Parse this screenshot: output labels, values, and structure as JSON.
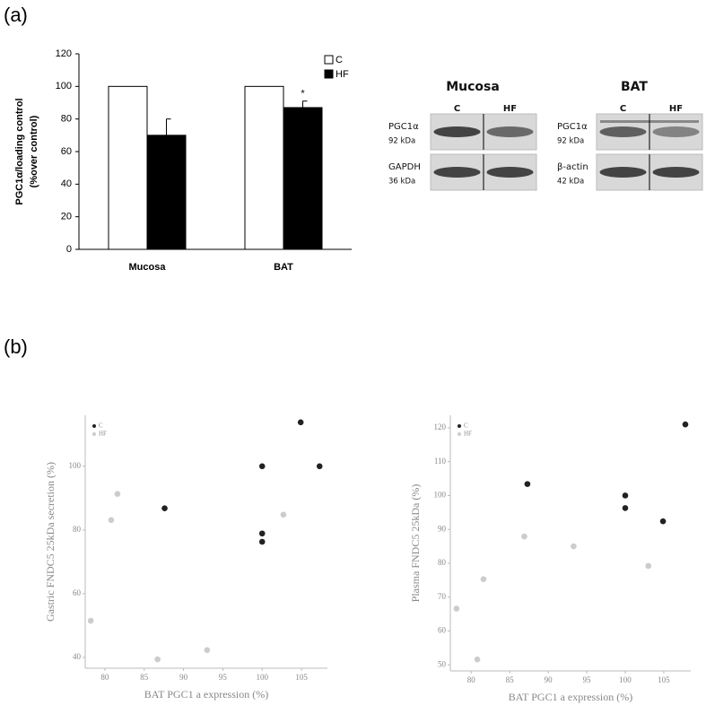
{
  "panel_labels": [
    "(a)",
    "(b)"
  ],
  "chart_data": [
    {
      "type": "bar",
      "ylabel": [
        "PGC1α/loading control",
        "(%over  control)"
      ],
      "categories": [
        "Mucosa",
        "BAT"
      ],
      "series": [
        {
          "name": "C",
          "color": "#ffffff",
          "values": [
            100,
            100
          ]
        },
        {
          "name": "HF",
          "color": "#000000",
          "values": [
            70,
            87
          ],
          "errors": [
            10,
            4
          ]
        }
      ],
      "annotation": "*",
      "ylim": [
        0,
        120
      ],
      "yticks": [
        0,
        20,
        40,
        60,
        80,
        100,
        120
      ]
    },
    {
      "type": "scatter",
      "xlabel": "BAT PGC1 a  expression (%)",
      "ylabel": "Gastric FNDC5 25kDa secretion (%)",
      "series": [
        {
          "name": "C",
          "color": "#222222",
          "x": [
            87.6,
            100,
            100,
            100,
            104.9,
            107.3
          ],
          "values": [
            86.8,
            100,
            78.9,
            76.3,
            113.8,
            100
          ]
        },
        {
          "name": "HF",
          "color": "#cccccc",
          "x": [
            78.2,
            80.8,
            81.6,
            86.7,
            93.0,
            102.7
          ],
          "values": [
            51.5,
            83.1,
            91.3,
            39.4,
            42.3,
            84.8
          ]
        }
      ],
      "xlim": [
        77.5,
        108.3
      ],
      "xticks": [
        80,
        85,
        90,
        95,
        100,
        105
      ],
      "ylim": [
        36.6,
        116
      ],
      "yticks": [
        40,
        60,
        80,
        100
      ]
    },
    {
      "type": "scatter",
      "xlabel": "BAT PGC1 a  expression (%)",
      "ylabel": "Plasma FNDC5 25kDa (%)",
      "series": [
        {
          "name": "C",
          "color": "#222222",
          "x": [
            87.3,
            100,
            100,
            104.9,
            107.8
          ],
          "values": [
            103.4,
            100,
            96.3,
            92.4,
            121
          ]
        },
        {
          "name": "HF",
          "color": "#cccccc",
          "x": [
            78.1,
            80.8,
            81.6,
            86.9,
            93.3,
            103
          ],
          "values": [
            66.6,
            51.6,
            75.3,
            87.9,
            85,
            79.2
          ]
        }
      ],
      "xlim": [
        77.3,
        108.5
      ],
      "xticks": [
        80,
        85,
        90,
        95,
        100,
        105
      ],
      "ylim": [
        48.2,
        123.7
      ],
      "yticks": [
        50,
        60,
        70,
        80,
        90,
        100,
        110,
        120
      ]
    }
  ],
  "blots": [
    {
      "title": "Mucosa",
      "lanes": [
        "C",
        "HF"
      ],
      "rows": [
        {
          "protein": "PGC1α",
          "size": "92 kDa"
        },
        {
          "protein": "GAPDH",
          "size": "36 kDa"
        }
      ]
    },
    {
      "title": "BAT",
      "lanes": [
        "C",
        "HF"
      ],
      "rows": [
        {
          "protein": "PGC1α",
          "size": "92 kDa"
        },
        {
          "protein": "β-actin",
          "size": "42 kDa"
        }
      ]
    }
  ]
}
